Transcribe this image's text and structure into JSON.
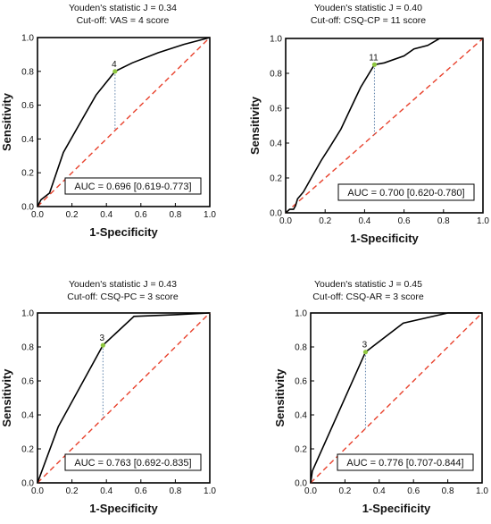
{
  "chart_data": [
    {
      "type": "line",
      "title": "Youden's statistic J  = 0.34",
      "subtitle": "Cut-off: VAS = 4 score",
      "xlabel": "1-Specificity",
      "ylabel": "Sensitivity",
      "xlim": [
        0,
        1
      ],
      "ylim": [
        0,
        1
      ],
      "ticks": [
        "0.0",
        "0.2",
        "0.4",
        "0.6",
        "0.8",
        "1.0"
      ],
      "auc_label": "AUC = 0.696 [0.619-0.773]",
      "cutoff_label": "4",
      "cutoff_point": [
        0.45,
        0.8
      ],
      "roc_x": [
        0,
        0.01,
        0.02,
        0.07,
        0.15,
        0.25,
        0.34,
        0.45,
        0.55,
        0.7,
        0.85,
        1.0
      ],
      "roc_y": [
        0,
        0.02,
        0.04,
        0.08,
        0.32,
        0.5,
        0.66,
        0.8,
        0.85,
        0.91,
        0.96,
        1.0
      ],
      "colors": {
        "roc": "#000000",
        "reference": "#e8412c",
        "cutoff": "#8ec63f"
      }
    },
    {
      "type": "line",
      "title": "Youden's statistic J  = 0.40",
      "subtitle": "Cut-off: CSQ-CP = 11 score",
      "xlabel": "1-Specificity",
      "ylabel": "Sensitivity",
      "xlim": [
        0,
        1
      ],
      "ylim": [
        0,
        1
      ],
      "ticks": [
        "0.0",
        "0.2",
        "0.4",
        "0.6",
        "0.8",
        "1.0"
      ],
      "auc_label": "AUC = 0.700 [0.620-0.780]",
      "cutoff_label": "11",
      "cutoff_point": [
        0.45,
        0.85
      ],
      "roc_x": [
        0,
        0.02,
        0.04,
        0.05,
        0.06,
        0.09,
        0.13,
        0.18,
        0.22,
        0.28,
        0.33,
        0.38,
        0.45,
        0.5,
        0.6,
        0.65,
        0.72,
        0.78,
        0.85,
        0.92,
        1.0
      ],
      "roc_y": [
        0,
        0.02,
        0.02,
        0.04,
        0.08,
        0.12,
        0.2,
        0.3,
        0.37,
        0.48,
        0.6,
        0.72,
        0.85,
        0.86,
        0.9,
        0.94,
        0.96,
        1.0,
        1.0,
        1.0,
        1.0
      ],
      "colors": {
        "roc": "#000000",
        "reference": "#e8412c",
        "cutoff": "#8ec63f"
      }
    },
    {
      "type": "line",
      "title": "Youden's statistic J  = 0.43",
      "subtitle": "Cut-off: CSQ-PC = 3 score",
      "xlabel": "1-Specificity",
      "ylabel": "Sensitivity",
      "xlim": [
        0,
        1
      ],
      "ylim": [
        0,
        1
      ],
      "ticks": [
        "0.0",
        "0.2",
        "0.4",
        "0.6",
        "0.8",
        "1.0"
      ],
      "auc_label": "AUC = 0.763 [0.692-0.835]",
      "cutoff_label": "3",
      "cutoff_point": [
        0.38,
        0.81
      ],
      "roc_x": [
        0,
        0.12,
        0.38,
        0.56,
        0.8,
        1.0
      ],
      "roc_y": [
        0,
        0.33,
        0.81,
        0.98,
        0.99,
        1.0
      ],
      "colors": {
        "roc": "#000000",
        "reference": "#e8412c",
        "cutoff": "#8ec63f"
      }
    },
    {
      "type": "line",
      "title": "Youden's statistic J  = 0.45",
      "subtitle": "Cut-off: CSQ-AR = 3 score",
      "xlabel": "1-Specificity",
      "ylabel": "Sensitivity",
      "xlim": [
        0,
        1
      ],
      "ylim": [
        0,
        1
      ],
      "ticks": [
        "0.0",
        "0.2",
        "0.4",
        "0.6",
        "0.8",
        "1.0"
      ],
      "auc_label": "AUC = 0.776 [0.707-0.844]",
      "cutoff_label": "3",
      "cutoff_point": [
        0.32,
        0.77
      ],
      "roc_x": [
        0,
        0.01,
        0.32,
        0.54,
        0.8,
        1.0
      ],
      "roc_y": [
        0,
        0.07,
        0.77,
        0.94,
        1.0,
        1.0
      ],
      "colors": {
        "roc": "#000000",
        "reference": "#e8412c",
        "cutoff": "#8ec63f"
      }
    }
  ]
}
